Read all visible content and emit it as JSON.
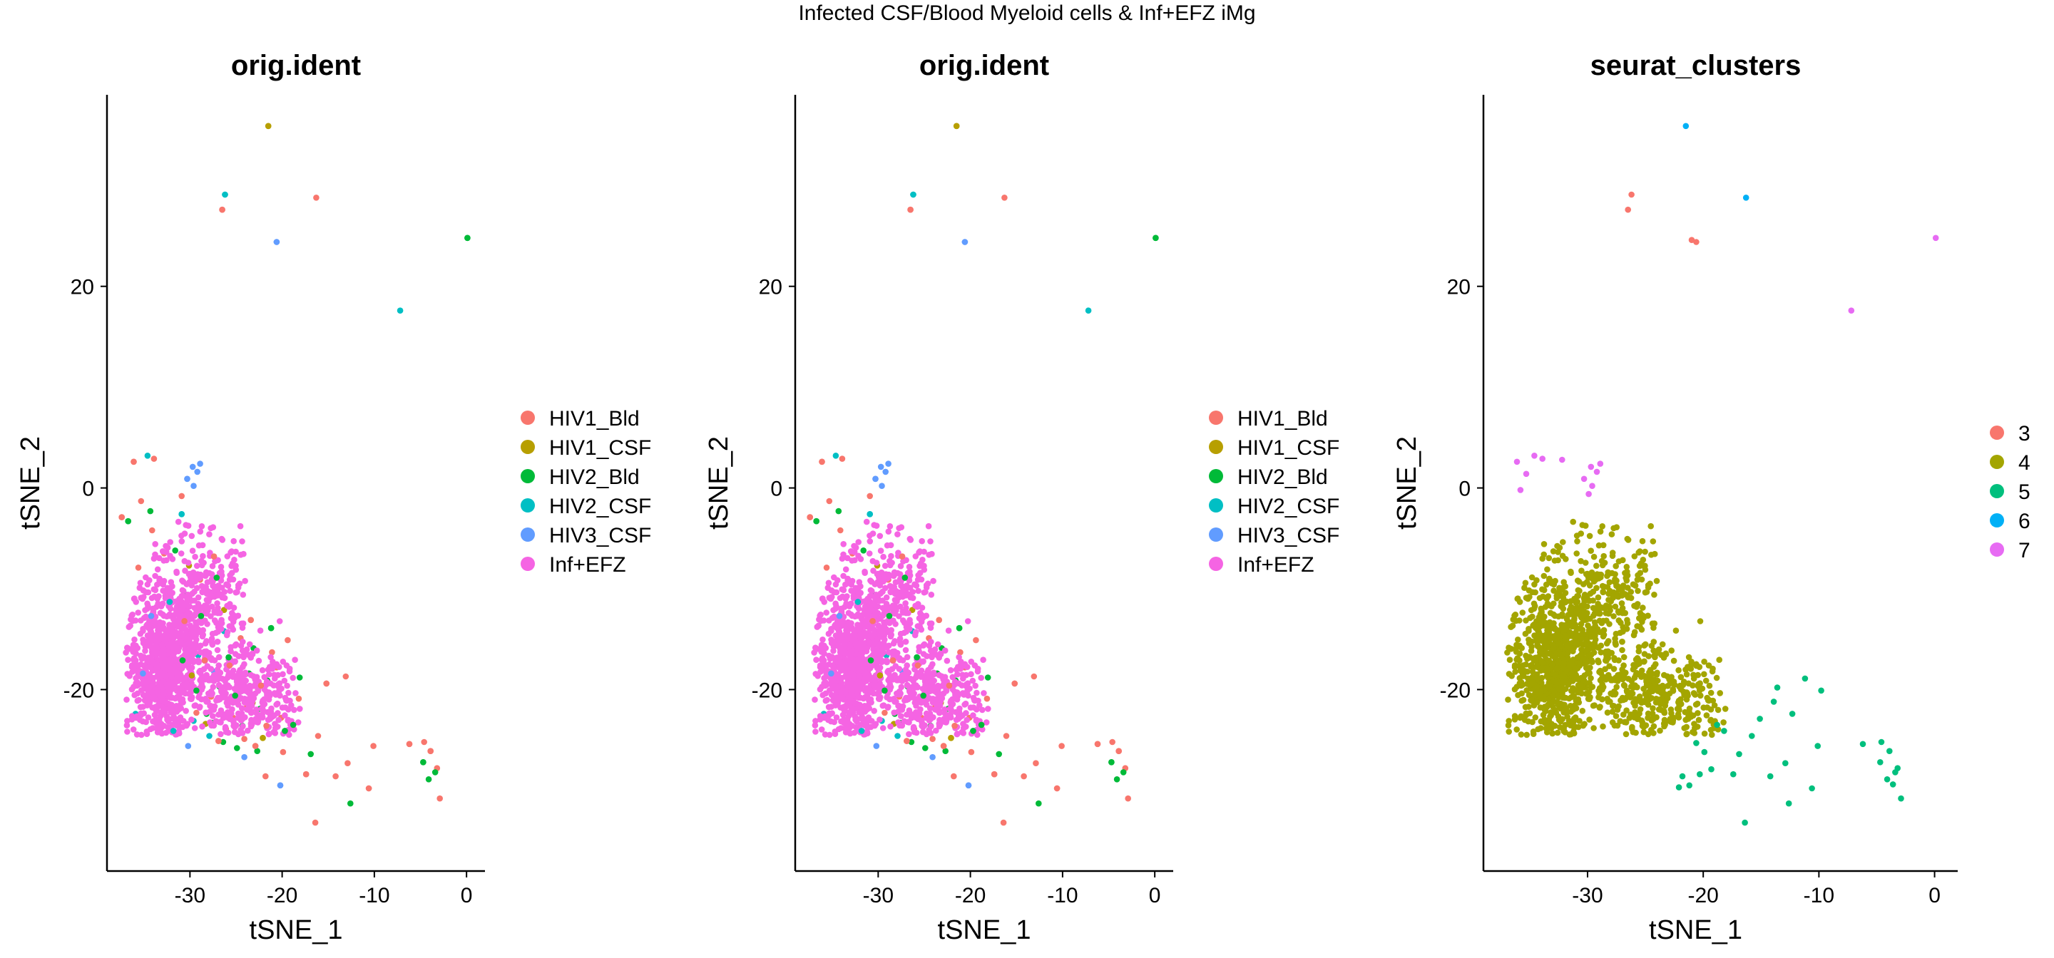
{
  "figure": {
    "title": "Infected CSF/Blood Myeloid cells & Inf+EFZ iMg"
  },
  "chart_data": [
    {
      "type": "scatter",
      "title": "orig.ident",
      "xlabel": "tSNE_1",
      "ylabel": "tSNE_2",
      "xlim": [
        -39,
        2
      ],
      "ylim": [
        -38,
        39
      ],
      "xticks": [
        -30,
        -20,
        -10,
        0
      ],
      "yticks": [
        -20,
        0,
        20
      ],
      "grid": false,
      "legend_position": "right",
      "legend": [
        {
          "name": "HIV1_Bld",
          "color": "#F8766D"
        },
        {
          "name": "HIV1_CSF",
          "color": "#B79F00"
        },
        {
          "name": "HIV2_Bld",
          "color": "#00BA38"
        },
        {
          "name": "HIV2_CSF",
          "color": "#00BFC4"
        },
        {
          "name": "HIV3_CSF",
          "color": "#619CFF"
        },
        {
          "name": "Inf+EFZ",
          "color": "#F564E3"
        }
      ],
      "series": [
        {
          "name": "HIV1_Bld",
          "color": "#F8766D",
          "points": [
            [
              -26.5,
              27.6
            ],
            [
              -16.3,
              28.8
            ],
            [
              -4.6,
              -25.2
            ],
            [
              -3.9,
              -26.1
            ],
            [
              -3.2,
              -27.8
            ],
            [
              -10.1,
              -25.6
            ],
            [
              -10.6,
              -29.8
            ],
            [
              -16.4,
              -33.2
            ],
            [
              -21.8,
              -28.6
            ],
            [
              -17.4,
              -28.4
            ],
            [
              -12.9,
              -27.3
            ],
            [
              -2.9,
              -30.8
            ],
            [
              -6.2,
              -25.4
            ],
            [
              -20.1,
              -22.8
            ],
            [
              -18.2,
              -20.9
            ],
            [
              -15.2,
              -19.4
            ],
            [
              -13.1,
              -18.7
            ],
            [
              -16.1,
              -24.6
            ],
            [
              -22.9,
              -25.6
            ],
            [
              -24.1,
              -24.9
            ],
            [
              -33.9,
              2.9
            ],
            [
              -36.1,
              2.6
            ],
            [
              -35.3,
              -1.3
            ],
            [
              -30.9,
              -0.8
            ],
            [
              -37.4,
              -2.9
            ],
            [
              -34.1,
              -4.2
            ],
            [
              -32.8,
              -6.5
            ],
            [
              -27.4,
              -6.8
            ],
            [
              -28.9,
              -9.1
            ],
            [
              -35.6,
              -7.9
            ],
            [
              -23.4,
              -13.1
            ],
            [
              -21.1,
              -16.3
            ],
            [
              -19.4,
              -15.1
            ],
            [
              -25.7,
              -17.6
            ],
            [
              -29.3,
              -22.3
            ],
            [
              -31.2,
              -23.6
            ],
            [
              -26.9,
              -25.1
            ],
            [
              -25.3,
              -22.8
            ],
            [
              -27.7,
              -20.7
            ],
            [
              -22.3,
              -19.6
            ],
            [
              -20.6,
              -17.8
            ],
            [
              -24.5,
              -14.9
            ],
            [
              -30.6,
              -13.2
            ],
            [
              -33.4,
              -16.1
            ],
            [
              -32.1,
              -19.3
            ],
            [
              -28.4,
              -17.1
            ],
            [
              -26.1,
              -23.9
            ],
            [
              -23.8,
              -21.7
            ],
            [
              -21.7,
              -23.6
            ],
            [
              -19.9,
              -26.2
            ],
            [
              -14.2,
              -28.6
            ]
          ]
        },
        {
          "name": "HIV1_CSF",
          "color": "#B79F00",
          "points": [
            [
              -21.5,
              35.9
            ],
            [
              -24.6,
              -19.2
            ],
            [
              -28.3,
              -23.4
            ],
            [
              -22.1,
              -24.8
            ],
            [
              -31.6,
              -14.7
            ],
            [
              -26.3,
              -12.1
            ],
            [
              -29.8,
              -18.6
            ],
            [
              -23.2,
              -21.3
            ],
            [
              -30.1,
              -7.7
            ]
          ]
        },
        {
          "name": "HIV2_Bld",
          "color": "#00BA38",
          "points": [
            [
              0.1,
              24.8
            ],
            [
              -4.1,
              -28.9
            ],
            [
              -3.4,
              -28.2
            ],
            [
              -4.7,
              -27.2
            ],
            [
              -12.6,
              -31.3
            ],
            [
              -16.9,
              -26.4
            ],
            [
              -18.8,
              -23.5
            ],
            [
              -21.6,
              -19.1
            ],
            [
              -22.4,
              -21.9
            ],
            [
              -25.1,
              -20.6
            ],
            [
              -26.4,
              -25.2
            ],
            [
              -27.6,
              -23.3
            ],
            [
              -29.3,
              -20.1
            ],
            [
              -32.4,
              -14.8
            ],
            [
              -30.4,
              -10.6
            ],
            [
              -27.1,
              -8.9
            ],
            [
              -31.6,
              -6.2
            ],
            [
              -34.3,
              -2.3
            ],
            [
              -36.7,
              -3.3
            ],
            [
              -24.3,
              -23.6
            ],
            [
              -23.1,
              -15.9
            ],
            [
              -25.8,
              -16.8
            ],
            [
              -28.2,
              -22.4
            ],
            [
              -20.4,
              -20.3
            ],
            [
              -19.7,
              -24.1
            ],
            [
              -26.8,
              -19.7
            ],
            [
              -33.2,
              -9.2
            ],
            [
              -28.8,
              -12.7
            ],
            [
              -24.9,
              -25.8
            ],
            [
              -22.7,
              -26.1
            ],
            [
              -21.2,
              -13.9
            ],
            [
              -18.1,
              -18.8
            ],
            [
              -32.9,
              -21.8
            ],
            [
              -30.8,
              -17.1
            ],
            [
              -23.6,
              -18.4
            ]
          ]
        },
        {
          "name": "HIV2_CSF",
          "color": "#00BFC4",
          "points": [
            [
              -26.2,
              29.1
            ],
            [
              -7.2,
              17.6
            ],
            [
              -33.5,
              -23.8
            ],
            [
              -31.8,
              -24.1
            ],
            [
              -29.6,
              -23.1
            ],
            [
              -27.9,
              -24.6
            ],
            [
              -30.9,
              -2.6
            ],
            [
              -34.6,
              3.2
            ],
            [
              -35.9,
              -22.4
            ],
            [
              -32.2,
              -11.3
            ],
            [
              -26.3,
              -14.2
            ],
            [
              -29.1,
              -16.6
            ]
          ]
        },
        {
          "name": "HIV3_CSF",
          "color": "#619CFF",
          "points": [
            [
              -20.6,
              24.4
            ],
            [
              -29.2,
              1.6
            ],
            [
              -29.7,
              2.1
            ],
            [
              -30.3,
              0.9
            ],
            [
              -28.9,
              2.4
            ],
            [
              -29.6,
              0.2
            ],
            [
              -20.2,
              -29.5
            ],
            [
              -24.1,
              -26.7
            ],
            [
              -31.4,
              -20.8
            ],
            [
              -34.2,
              -12.7
            ],
            [
              -27.4,
              -18.2
            ],
            [
              -22.6,
              -23.1
            ],
            [
              -35.1,
              -18.4
            ],
            [
              -30.2,
              -25.6
            ]
          ]
        }
      ]
    },
    {
      "type": "scatter",
      "title": "orig.ident",
      "xlabel": "tSNE_1",
      "ylabel": "tSNE_2",
      "xlim": [
        -39,
        2
      ],
      "ylim": [
        -38,
        39
      ],
      "xticks": [
        -30,
        -20,
        -10,
        0
      ],
      "yticks": [
        -20,
        0,
        20
      ],
      "grid": false,
      "legend_position": "right",
      "legend": [
        {
          "name": "HIV1_Bld",
          "color": "#F8766D"
        },
        {
          "name": "HIV1_CSF",
          "color": "#B79F00"
        },
        {
          "name": "HIV2_Bld",
          "color": "#00BA38"
        },
        {
          "name": "HIV2_CSF",
          "color": "#00BFC4"
        },
        {
          "name": "HIV3_CSF",
          "color": "#619CFF"
        },
        {
          "name": "Inf+EFZ",
          "color": "#F564E3"
        }
      ]
    },
    {
      "type": "scatter",
      "title": "seurat_clusters",
      "xlabel": "tSNE_1",
      "ylabel": "tSNE_2",
      "xlim": [
        -39,
        2
      ],
      "ylim": [
        -38,
        39
      ],
      "xticks": [
        -30,
        -20,
        -10,
        0
      ],
      "yticks": [
        -20,
        0,
        20
      ],
      "grid": false,
      "legend_position": "right",
      "legend": [
        {
          "name": "3",
          "color": "#F8766D"
        },
        {
          "name": "4",
          "color": "#A3A500"
        },
        {
          "name": "5",
          "color": "#00BF7D"
        },
        {
          "name": "6",
          "color": "#00B0F6"
        },
        {
          "name": "7",
          "color": "#E76BF3"
        }
      ],
      "series": [
        {
          "name": "3",
          "color": "#F8766D",
          "points": [
            [
              -26.5,
              27.6
            ],
            [
              -26.2,
              29.1
            ],
            [
              -20.6,
              24.4
            ],
            [
              -21.0,
              24.6
            ]
          ]
        },
        {
          "name": "5",
          "color": "#00BF7D",
          "points": [
            [
              -4.6,
              -25.2
            ],
            [
              -3.9,
              -26.1
            ],
            [
              -3.2,
              -27.8
            ],
            [
              -4.1,
              -28.9
            ],
            [
              -3.4,
              -28.2
            ],
            [
              -4.7,
              -27.2
            ],
            [
              -2.9,
              -30.8
            ],
            [
              -3.6,
              -29.4
            ],
            [
              -6.2,
              -25.4
            ],
            [
              -10.1,
              -25.6
            ],
            [
              -10.6,
              -29.8
            ],
            [
              -12.6,
              -31.3
            ],
            [
              -13.9,
              -21.2
            ],
            [
              -12.3,
              -22.4
            ],
            [
              -15.1,
              -22.9
            ],
            [
              -16.4,
              -33.2
            ],
            [
              -14.2,
              -28.6
            ],
            [
              -16.9,
              -26.4
            ],
            [
              -17.4,
              -28.4
            ],
            [
              -18.2,
              -24.1
            ],
            [
              -18.8,
              -23.5
            ],
            [
              -19.9,
              -26.2
            ],
            [
              -20.3,
              -28.4
            ],
            [
              -21.2,
              -29.5
            ],
            [
              -21.8,
              -28.6
            ],
            [
              -20.6,
              -25.3
            ],
            [
              -11.2,
              -18.9
            ],
            [
              -9.8,
              -20.1
            ],
            [
              -13.6,
              -19.8
            ],
            [
              -19.3,
              -27.9
            ],
            [
              -22.1,
              -29.7
            ],
            [
              -12.9,
              -27.3
            ],
            [
              -15.8,
              -24.6
            ]
          ]
        },
        {
          "name": "6",
          "color": "#00B0F6",
          "points": [
            [
              -21.5,
              35.9
            ],
            [
              -16.3,
              28.8
            ]
          ]
        },
        {
          "name": "7",
          "color": "#E76BF3",
          "points": [
            [
              0.1,
              24.8
            ],
            [
              -7.2,
              17.6
            ],
            [
              -34.6,
              3.2
            ],
            [
              -33.9,
              2.9
            ],
            [
              -36.1,
              2.6
            ],
            [
              -35.3,
              1.4
            ],
            [
              -35.8,
              -0.2
            ],
            [
              -29.2,
              1.6
            ],
            [
              -29.7,
              2.1
            ],
            [
              -30.3,
              0.9
            ],
            [
              -28.9,
              2.4
            ],
            [
              -29.6,
              0.2
            ],
            [
              -29.9,
              -0.6
            ],
            [
              -32.2,
              2.8
            ]
          ]
        }
      ]
    }
  ]
}
